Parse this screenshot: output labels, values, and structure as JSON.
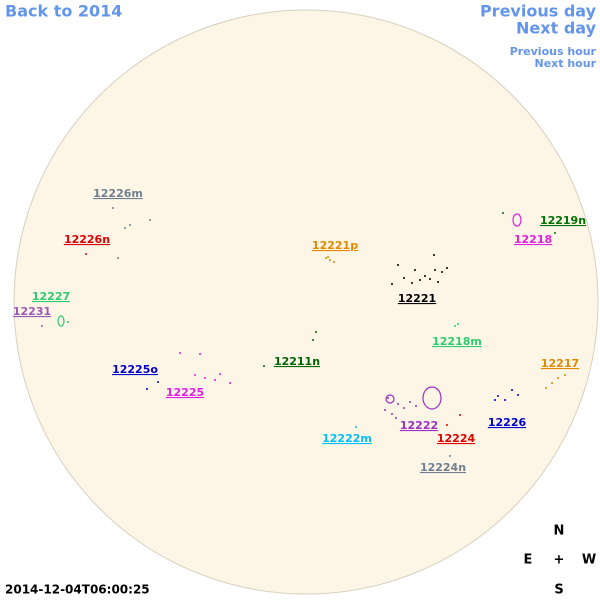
{
  "navigation": {
    "back": "Back to 2014",
    "previous_day": "Previous day",
    "next_day": "Next day",
    "previous_hour": "Previous hour",
    "next_hour": "Next hour"
  },
  "regions": [
    "12226m",
    "12226n",
    "12221p",
    "12219n",
    "12218",
    "12221",
    "12227",
    "12231",
    "12218m",
    "12211n",
    "12225o",
    "12225",
    "12217",
    "12226",
    "12222",
    "12224",
    "12222m",
    "12224n"
  ],
  "compass": {
    "north": "N",
    "east": "E",
    "center": "+",
    "west": "W",
    "south": "S"
  },
  "timestamp": "2014-12-04T06:00:25"
}
